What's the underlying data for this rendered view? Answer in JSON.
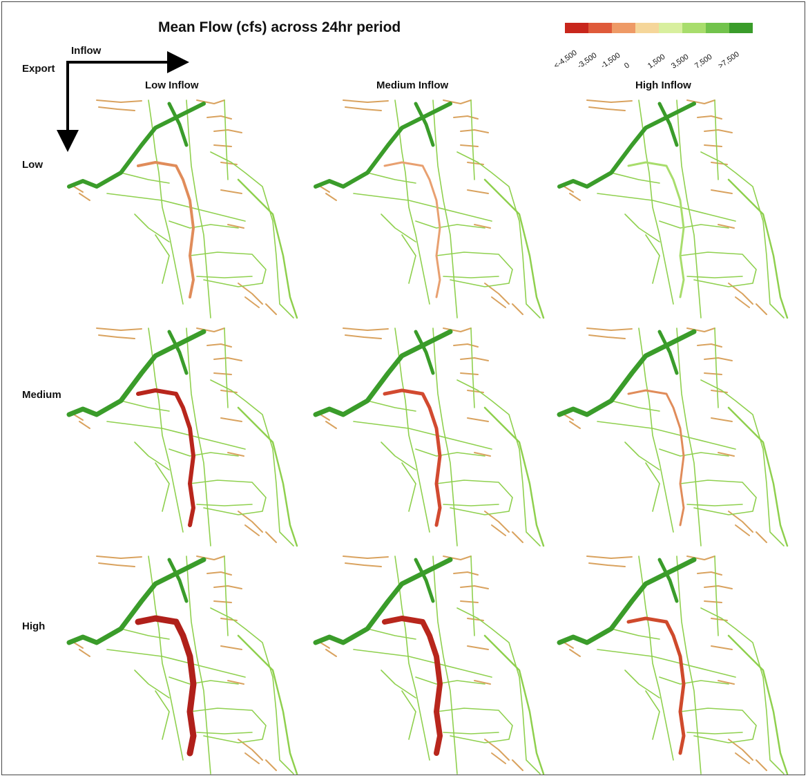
{
  "title": "Mean Flow (cfs) across 24hr period",
  "axes": {
    "inflow_label": "Inflow",
    "export_label": "Export"
  },
  "columns": [
    "Low Inflow",
    "Medium Inflow",
    "High Inflow"
  ],
  "rows": [
    "Low",
    "Medium",
    "High"
  ],
  "legend": {
    "ticks": [
      "<-4,500",
      "-3,500",
      "-1,500",
      "0",
      "1,500",
      "3,500",
      "7,500",
      ">7,500"
    ],
    "colors": [
      "#c8261c",
      "#df5a3a",
      "#ee9a66",
      "#f5d69a",
      "#d8ef9e",
      "#a8dd6c",
      "#72c34c",
      "#3a9c2a"
    ]
  },
  "panel_color_levels": [
    [
      {
        "tributaries": "#d9a25e",
        "main_channel": "#3a9c2a",
        "central_path": "#e08c5a",
        "central_width": 4
      },
      {
        "tributaries": "#d9a25e",
        "main_channel": "#3a9c2a",
        "central_path": "#e8a070",
        "central_width": 3
      },
      {
        "tributaries": "#d9a25e",
        "main_channel": "#3a9c2a",
        "central_path": "#a8dd6c",
        "central_width": 3
      }
    ],
    [
      {
        "tributaries": "#d9a25e",
        "main_channel": "#3a9c2a",
        "central_path": "#b8261c",
        "central_width": 6
      },
      {
        "tributaries": "#d9a25e",
        "main_channel": "#3a9c2a",
        "central_path": "#d24a30",
        "central_width": 5
      },
      {
        "tributaries": "#d9a25e",
        "main_channel": "#3a9c2a",
        "central_path": "#e08c5a",
        "central_width": 3
      }
    ],
    [
      {
        "tributaries": "#d9a25e",
        "main_channel": "#3a9c2a",
        "central_path": "#b0201a",
        "central_width": 9
      },
      {
        "tributaries": "#d9a25e",
        "main_channel": "#3a9c2a",
        "central_path": "#b8261c",
        "central_width": 8
      },
      {
        "tributaries": "#d9a25e",
        "main_channel": "#3a9c2a",
        "central_path": "#cf4a2c",
        "central_width": 5
      }
    ]
  ]
}
